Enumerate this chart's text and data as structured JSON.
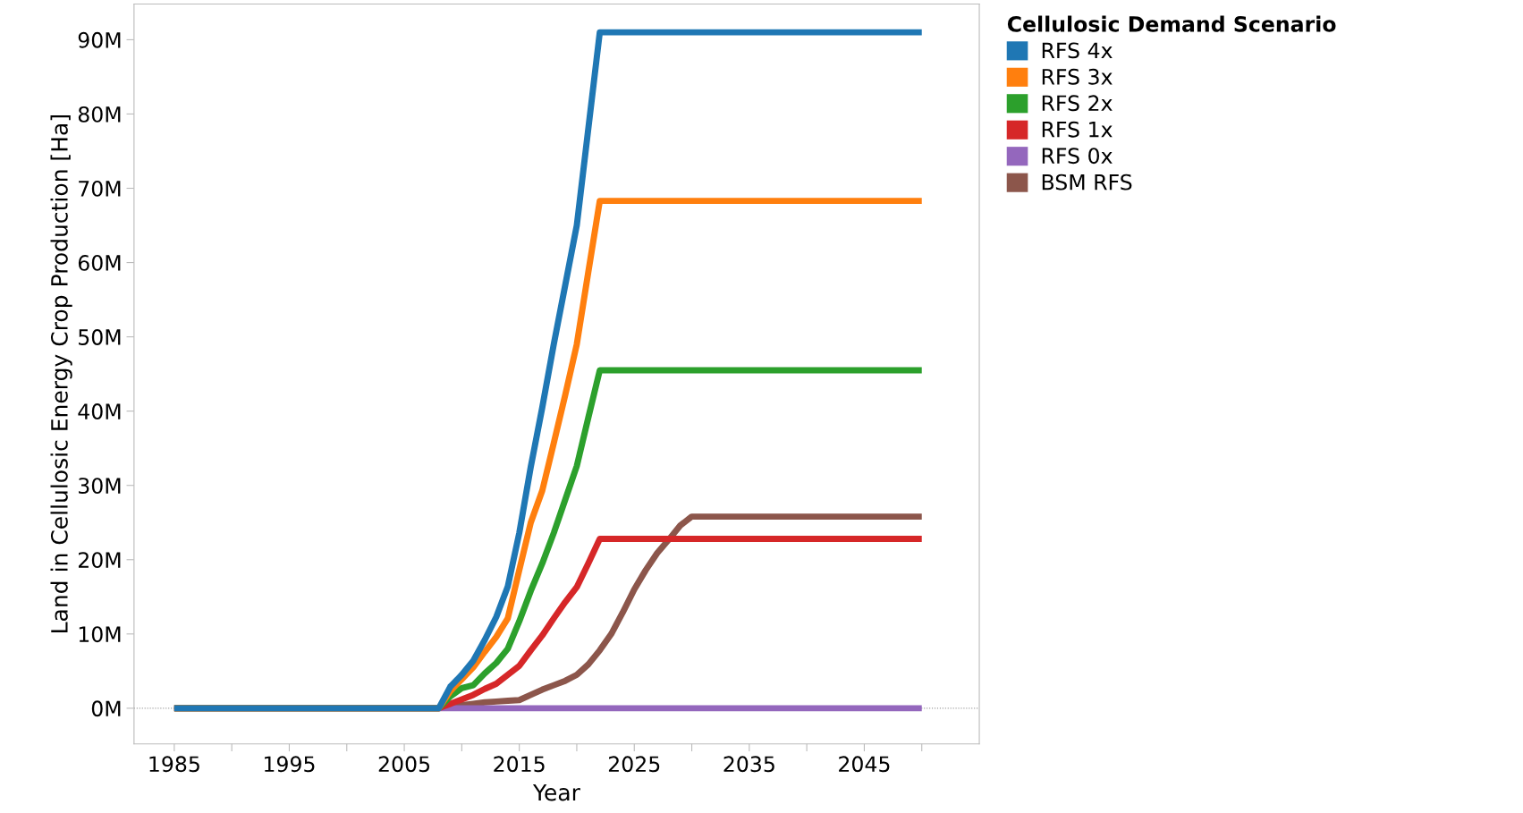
{
  "chart_data": {
    "type": "line",
    "xlabel": "Year",
    "ylabel": "Land in Cellulosic Energy Crop Production [Ha]",
    "legend_title": "Cellulosic Demand Scenario",
    "legend": "top right",
    "grid": false,
    "marker": "none",
    "line_style": "solid",
    "xlim": [
      1981.5,
      2055
    ],
    "xticks": [
      1985,
      {
        "value": 1990,
        "label": null
      },
      1995,
      {
        "value": 2000,
        "label": null
      },
      2005,
      {
        "value": 2010,
        "label": null
      },
      2015,
      {
        "value": 2020,
        "label": null
      },
      2025,
      {
        "value": 2030,
        "label": null
      },
      2035,
      {
        "value": 2040,
        "label": null
      },
      2045,
      {
        "value": 2050,
        "label": null
      }
    ],
    "ylim": [
      -4800000,
      94800000
    ],
    "yticks": [
      {
        "value": 0,
        "label": "0M"
      },
      {
        "value": 10000000,
        "label": "10M"
      },
      {
        "value": 20000000,
        "label": "20M"
      },
      {
        "value": 30000000,
        "label": "30M"
      },
      {
        "value": 40000000,
        "label": "40M"
      },
      {
        "value": 50000000,
        "label": "50M"
      },
      {
        "value": 60000000,
        "label": "60M"
      },
      {
        "value": 70000000,
        "label": "70M"
      },
      {
        "value": 80000000,
        "label": "80M"
      },
      {
        "value": 90000000,
        "label": "90M"
      }
    ],
    "ref_lines": [
      {
        "axis": "y",
        "value": 0,
        "label": null,
        "color": "#999999",
        "line_style": "dotted"
      }
    ],
    "series": [
      {
        "name": "RFS 4x",
        "color": "#1f77b4",
        "x": [
          1985,
          2008,
          2009,
          2010,
          2011,
          2012,
          2013,
          2014,
          2015,
          2016,
          2017,
          2018,
          2019,
          2020,
          2021,
          2022,
          2050
        ],
        "values": [
          0,
          0,
          2900000,
          4500000,
          6400000,
          9200000,
          12300000,
          16400000,
          23600000,
          32500000,
          40500000,
          49000000,
          57000000,
          65000000,
          78000000,
          91000000,
          91000000
        ]
      },
      {
        "name": "RFS 3x",
        "color": "#ff7f0e",
        "x": [
          1985,
          2008,
          2009,
          2010,
          2011,
          2012,
          2013,
          2014,
          2015,
          2016,
          2017,
          2018,
          2019,
          2020,
          2021,
          2022,
          2050
        ],
        "values": [
          0,
          0,
          2300000,
          3900000,
          5500000,
          7600000,
          9600000,
          12100000,
          18600000,
          25000000,
          29300000,
          35700000,
          42200000,
          49000000,
          58700000,
          68300000,
          68300000
        ]
      },
      {
        "name": "RFS 2x",
        "color": "#2ca02c",
        "x": [
          1985,
          2008,
          2009,
          2010,
          2011,
          2012,
          2013,
          2014,
          2015,
          2016,
          2017,
          2018,
          2019,
          2020,
          2021,
          2022,
          2050
        ],
        "values": [
          0,
          0,
          1600000,
          2700000,
          3100000,
          4700000,
          6100000,
          8000000,
          11700000,
          15800000,
          19500000,
          23600000,
          28100000,
          32600000,
          39100000,
          45500000,
          45500000
        ]
      },
      {
        "name": "RFS 1x",
        "color": "#d62728",
        "x": [
          1985,
          2008,
          2009,
          2010,
          2011,
          2012,
          2013,
          2014,
          2015,
          2016,
          2017,
          2018,
          2019,
          2020,
          2021,
          2022,
          2050
        ],
        "values": [
          0,
          0,
          600000,
          1200000,
          1800000,
          2600000,
          3300000,
          4500000,
          5700000,
          7800000,
          9800000,
          12100000,
          14300000,
          16300000,
          19500000,
          22800000,
          22800000
        ]
      },
      {
        "name": "RFS 0x",
        "color": "#9467bd",
        "x": [
          1985,
          2050
        ],
        "values": [
          0,
          0
        ]
      },
      {
        "name": "BSM RFS",
        "color": "#8c564b",
        "x": [
          1985,
          2008,
          2009,
          2010,
          2011,
          2012,
          2013,
          2014,
          2015,
          2016,
          2017,
          2018,
          2019,
          2020,
          2021,
          2022,
          2023,
          2024,
          2025,
          2026,
          2027,
          2028,
          2029,
          2030,
          2050
        ],
        "values": [
          0,
          0,
          200000,
          400000,
          600000,
          800000,
          900000,
          1000000,
          1100000,
          1800000,
          2500000,
          3100000,
          3700000,
          4500000,
          5900000,
          7800000,
          10000000,
          12900000,
          16000000,
          18600000,
          20900000,
          22700000,
          24600000,
          25800000,
          25800000
        ]
      }
    ]
  }
}
